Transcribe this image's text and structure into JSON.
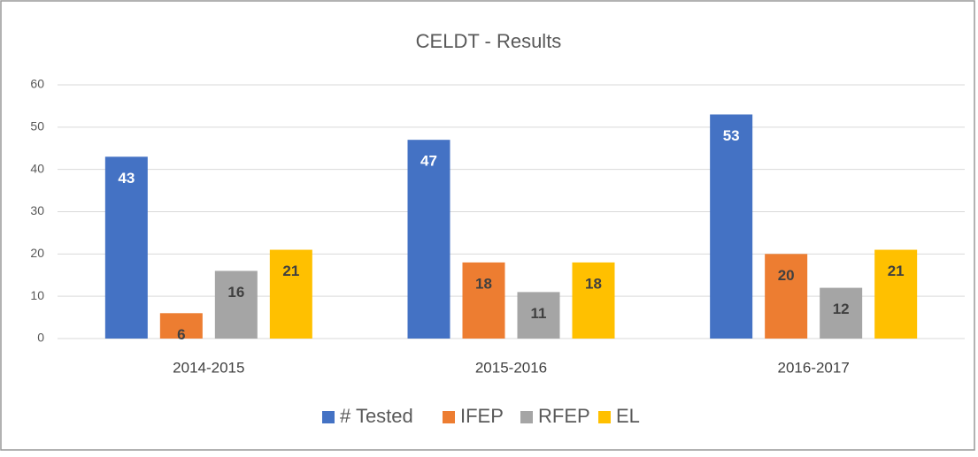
{
  "chart_data": {
    "type": "bar",
    "title": "CELDT - Results",
    "categories": [
      "2014-2015",
      "2015-2016",
      "2016-2017"
    ],
    "series": [
      {
        "name": "# Tested",
        "color": "#4472c4",
        "values": [
          43,
          47,
          53
        ]
      },
      {
        "name": "IFEP",
        "color": "#ed7d31",
        "values": [
          6,
          18,
          20
        ]
      },
      {
        "name": "RFEP",
        "color": "#a5a5a5",
        "values": [
          16,
          11,
          12
        ]
      },
      {
        "name": "EL",
        "color": "#ffc000",
        "values": [
          21,
          18,
          21
        ]
      }
    ],
    "ylim": [
      0,
      60
    ],
    "yticks": [
      0,
      10,
      20,
      30,
      40,
      50,
      60
    ],
    "grid": true,
    "legend": "bottom"
  }
}
